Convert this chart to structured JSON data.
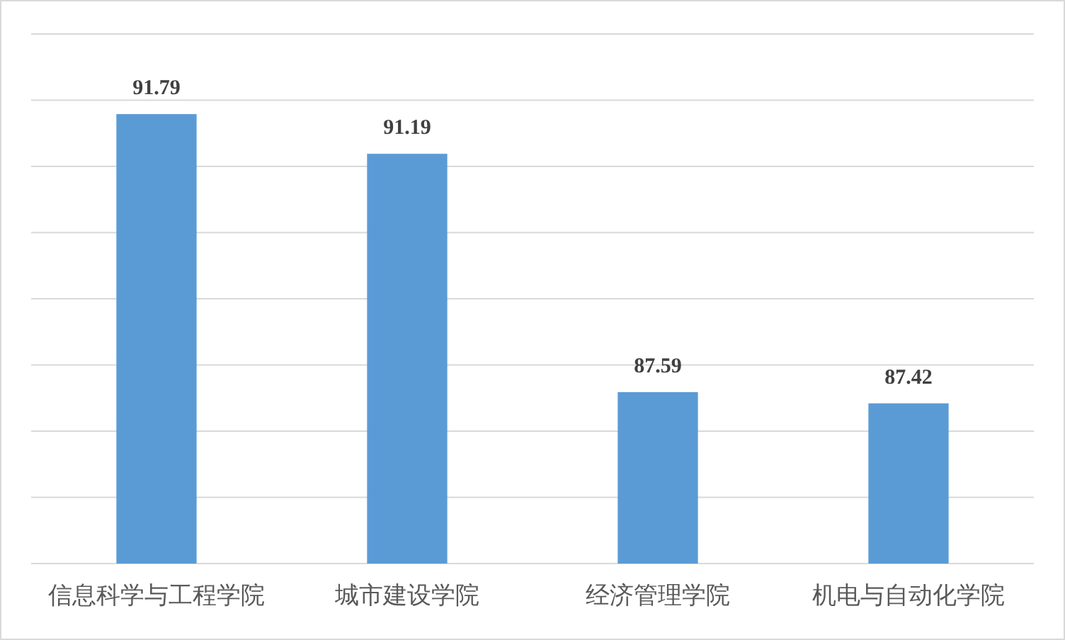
{
  "chart_data": {
    "type": "bar",
    "categories": [
      "信息科学与工程学院",
      "城市建设学院",
      "经济管理学院",
      "机电与自动化学院"
    ],
    "values": [
      91.79,
      91.19,
      87.59,
      87.42
    ],
    "color": "#5b9bd5",
    "ylim": [
      85,
      93
    ],
    "yticks": [
      {
        "value": 85,
        "label": null
      },
      {
        "value": 86,
        "label": null
      },
      {
        "value": 87,
        "label": null
      },
      {
        "value": 88,
        "label": null
      },
      {
        "value": 89,
        "label": null
      },
      {
        "value": 90,
        "label": null
      },
      {
        "value": 91,
        "label": null
      },
      {
        "value": 92,
        "label": null
      },
      {
        "value": 93,
        "label": null
      }
    ],
    "grid": "y",
    "tick_labels": "x",
    "data_labels": true
  }
}
